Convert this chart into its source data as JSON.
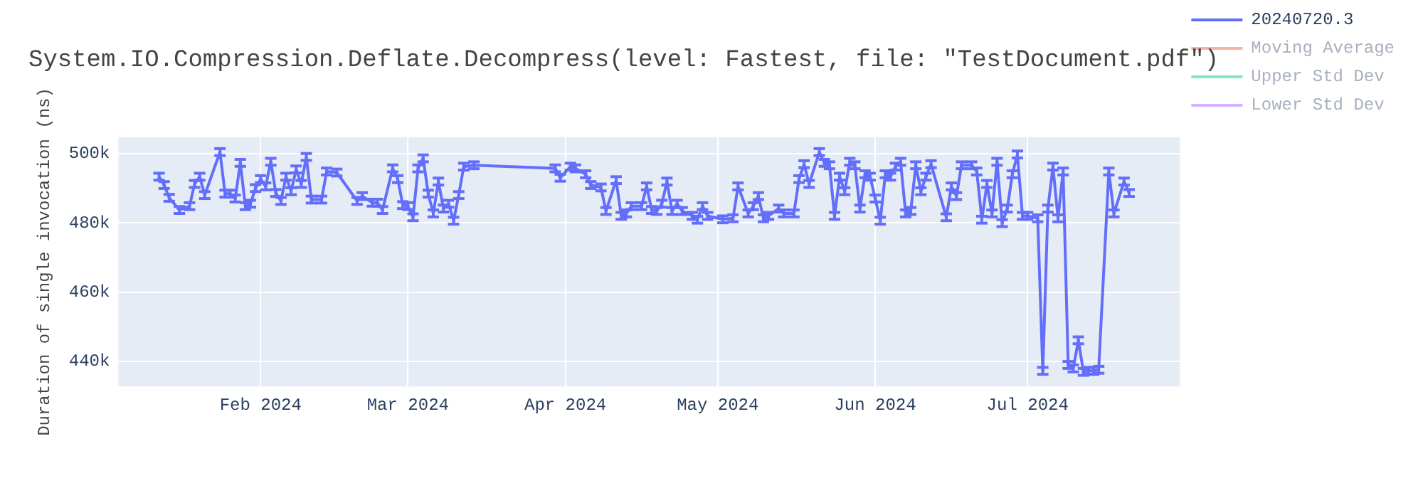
{
  "chart_data": {
    "type": "line",
    "title": "System.IO.Compression.Deflate.Decompress(level: Fastest, file: \"TestDocument.pdf\")",
    "ylabel": "Duration of single invocation (ns)",
    "x": [
      "2024-01-12",
      "2024-01-13",
      "2024-01-14",
      "2024-01-16",
      "2024-01-18",
      "2024-01-19",
      "2024-01-20",
      "2024-01-21",
      "2024-01-24",
      "2024-01-25",
      "2024-01-26",
      "2024-01-27",
      "2024-01-28",
      "2024-01-29",
      "2024-01-30",
      "2024-01-31",
      "2024-02-01",
      "2024-02-02",
      "2024-02-03",
      "2024-02-04",
      "2024-02-05",
      "2024-02-06",
      "2024-02-07",
      "2024-02-08",
      "2024-02-09",
      "2024-02-10",
      "2024-02-11",
      "2024-02-13",
      "2024-02-14",
      "2024-02-16",
      "2024-02-20",
      "2024-02-21",
      "2024-02-23",
      "2024-02-24",
      "2024-02-25",
      "2024-02-27",
      "2024-02-28",
      "2024-02-29",
      "2024-03-01",
      "2024-03-02",
      "2024-03-03",
      "2024-03-04",
      "2024-03-05",
      "2024-03-06",
      "2024-03-07",
      "2024-03-08",
      "2024-03-09",
      "2024-03-10",
      "2024-03-11",
      "2024-03-12",
      "2024-03-14",
      "2024-03-30",
      "2024-03-31",
      "2024-04-02",
      "2024-04-03",
      "2024-04-05",
      "2024-04-06",
      "2024-04-08",
      "2024-04-09",
      "2024-04-11",
      "2024-04-12",
      "2024-04-13",
      "2024-04-14",
      "2024-04-16",
      "2024-04-17",
      "2024-04-18",
      "2024-04-19",
      "2024-04-20",
      "2024-04-21",
      "2024-04-22",
      "2024-04-23",
      "2024-04-24",
      "2024-04-26",
      "2024-04-27",
      "2024-04-28",
      "2024-04-29",
      "2024-05-02",
      "2024-05-04",
      "2024-05-05",
      "2024-05-07",
      "2024-05-08",
      "2024-05-09",
      "2024-05-10",
      "2024-05-11",
      "2024-05-13",
      "2024-05-14",
      "2024-05-16",
      "2024-05-17",
      "2024-05-18",
      "2024-05-19",
      "2024-05-21",
      "2024-05-22",
      "2024-05-23",
      "2024-05-24",
      "2024-05-25",
      "2024-05-26",
      "2024-05-27",
      "2024-05-28",
      "2024-05-29",
      "2024-05-30",
      "2024-05-31",
      "2024-06-01",
      "2024-06-02",
      "2024-06-03",
      "2024-06-04",
      "2024-06-05",
      "2024-06-06",
      "2024-06-07",
      "2024-06-08",
      "2024-06-09",
      "2024-06-10",
      "2024-06-11",
      "2024-06-12",
      "2024-06-15",
      "2024-06-16",
      "2024-06-17",
      "2024-06-18",
      "2024-06-20",
      "2024-06-21",
      "2024-06-22",
      "2024-06-23",
      "2024-06-24",
      "2024-06-25",
      "2024-06-26",
      "2024-06-27",
      "2024-06-28",
      "2024-06-29",
      "2024-06-30",
      "2024-07-01",
      "2024-07-03",
      "2024-07-04",
      "2024-07-05",
      "2024-07-06",
      "2024-07-07",
      "2024-07-08",
      "2024-07-09",
      "2024-07-10",
      "2024-07-11",
      "2024-07-12",
      "2024-07-13",
      "2024-07-14",
      "2024-07-15",
      "2024-07-17",
      "2024-07-18",
      "2024-07-20",
      "2024-07-21"
    ],
    "series": [
      {
        "name": "20240720.3",
        "color": "#636efa",
        "values": [
          493300,
          490900,
          487200,
          483700,
          484800,
          491200,
          493300,
          488000,
          500400,
          488400,
          488400,
          487000,
          497300,
          484800,
          485500,
          490000,
          492600,
          490500,
          497600,
          488600,
          486300,
          493300,
          489100,
          495400,
          491200,
          499000,
          486700,
          486700,
          494800,
          494500,
          486300,
          487700,
          485800,
          485800,
          483700,
          495700,
          492600,
          485100,
          484800,
          481600,
          495700,
          498600,
          488400,
          482700,
          491900,
          484100,
          485500,
          480600,
          488000,
          496200,
          496600,
          495700,
          493000,
          496200,
          495700,
          494000,
          490900,
          490200,
          483400,
          492300,
          482000,
          482700,
          484800,
          484800,
          490500,
          483700,
          483400,
          485500,
          491900,
          483400,
          485500,
          483400,
          482000,
          480900,
          484800,
          482000,
          481000,
          481300,
          490500,
          482700,
          484800,
          487700,
          481300,
          482000,
          484100,
          482700,
          482700,
          492600,
          496900,
          491200,
          500400,
          497300,
          496600,
          482000,
          493300,
          489100,
          497600,
          496600,
          484100,
          494000,
          493300,
          487000,
          480600,
          494000,
          493300,
          496200,
          497600,
          482700,
          483400,
          496600,
          489100,
          493300,
          496900,
          481600,
          490500,
          487700,
          496600,
          496600,
          494800,
          480900,
          491200,
          482700,
          497600,
          479900,
          484100,
          494000,
          499700,
          482000,
          482000,
          481300,
          437300,
          484100,
          496200,
          481300,
          494800,
          439000,
          438000,
          446100,
          437000,
          437300,
          437300,
          437600,
          494800,
          482700,
          491900,
          488600
        ],
        "errors": [
          1000,
          1000,
          1000,
          1000,
          1000,
          1000,
          1000,
          1000,
          1000,
          1000,
          1000,
          1000,
          1000,
          1000,
          1000,
          1000,
          1000,
          1000,
          1000,
          1000,
          1000,
          1000,
          1000,
          1000,
          1000,
          1000,
          1000,
          1000,
          1000,
          1000,
          1000,
          1000,
          1000,
          1000,
          1000,
          1000,
          1000,
          1000,
          1000,
          1000,
          1000,
          1000,
          1000,
          1000,
          1000,
          1000,
          1000,
          1000,
          1000,
          1000,
          1000,
          1000,
          1000,
          1000,
          1000,
          1000,
          1000,
          1000,
          1000,
          1000,
          1000,
          1000,
          1000,
          1000,
          1000,
          1000,
          1000,
          1000,
          1000,
          1000,
          1000,
          1000,
          1000,
          1000,
          1000,
          1000,
          1000,
          1000,
          1000,
          1000,
          1000,
          1000,
          1000,
          1000,
          1000,
          1000,
          1000,
          1000,
          1000,
          1000,
          1000,
          1000,
          1000,
          1000,
          1000,
          1000,
          1000,
          1000,
          1000,
          1000,
          1000,
          1000,
          1000,
          1000,
          1000,
          1000,
          1000,
          1000,
          1000,
          1000,
          1000,
          1000,
          1000,
          1000,
          1000,
          1000,
          1000,
          1000,
          1000,
          1000,
          1000,
          1000,
          1000,
          1000,
          1000,
          1000,
          1000,
          1000,
          1000,
          1000,
          1000,
          1000,
          1000,
          1000,
          1000,
          1000,
          1000,
          1000,
          1000,
          1000,
          1000,
          1000,
          1000,
          1000,
          1000,
          1000
        ]
      },
      {
        "name": "Moving Average",
        "color": "#f7b3a3",
        "values": [
          null,
          null,
          null,
          null,
          null,
          null,
          null,
          null,
          null,
          null,
          null,
          null,
          null,
          null,
          null,
          null,
          null,
          null,
          null,
          null,
          null,
          null,
          null,
          null,
          null,
          null,
          null,
          null,
          null,
          null,
          null,
          null,
          null,
          null,
          null,
          null,
          null,
          null,
          null,
          null,
          null,
          null,
          null,
          null,
          null,
          null,
          null,
          null,
          null,
          null,
          null,
          null,
          null,
          null,
          null,
          null,
          null,
          null,
          null,
          null,
          null,
          null,
          null,
          null,
          null,
          null,
          null,
          null,
          null,
          null,
          null,
          null,
          null,
          null,
          null,
          null,
          null,
          null,
          null,
          null,
          null,
          null,
          null,
          null,
          null,
          null,
          null,
          null,
          null,
          null,
          null,
          null,
          null,
          null,
          null,
          null,
          null,
          null,
          null,
          null,
          null,
          null,
          null,
          null,
          null,
          null,
          null,
          null,
          null,
          null,
          null,
          null,
          null,
          null,
          null,
          null,
          null,
          null,
          null,
          null,
          null,
          null,
          null,
          null,
          null,
          null,
          null,
          null,
          null,
          null,
          null,
          null,
          null,
          null,
          null,
          null,
          null,
          null,
          null,
          null,
          null,
          null,
          null,
          null,
          null,
          null
        ]
      },
      {
        "name": "Upper Std Dev",
        "color": "#80e5c9",
        "values": [
          null,
          null,
          null,
          null,
          null,
          null,
          null,
          null,
          null,
          null,
          null,
          null,
          null,
          null,
          null,
          null,
          null,
          null,
          null,
          null,
          null,
          null,
          null,
          null,
          null,
          null,
          null,
          null,
          null,
          null,
          null,
          null,
          null,
          null,
          null,
          null,
          null,
          null,
          null,
          null,
          null,
          null,
          null,
          null,
          null,
          null,
          null,
          null,
          null,
          null,
          null,
          null,
          null,
          null,
          null,
          null,
          null,
          null,
          null,
          null,
          null,
          null,
          null,
          null,
          null,
          null,
          null,
          null,
          null,
          null,
          null,
          null,
          null,
          null,
          null,
          null,
          null,
          null,
          null,
          null,
          null,
          null,
          null,
          null,
          null,
          null,
          null,
          null,
          null,
          null,
          null,
          null,
          null,
          null,
          null,
          null,
          null,
          null,
          null,
          null,
          null,
          null,
          null,
          null,
          null,
          null,
          null,
          null,
          null,
          null,
          null,
          null,
          null,
          null,
          null,
          null,
          null,
          null,
          null,
          null,
          null,
          null,
          null,
          null,
          null,
          null,
          null,
          null,
          null,
          null,
          null,
          null,
          null,
          null,
          null,
          null,
          null,
          null,
          null,
          null,
          null,
          null,
          null,
          null,
          null,
          null
        ]
      },
      {
        "name": "Lower Std Dev",
        "color": "#d4b1fc",
        "values": [
          null,
          null,
          null,
          null,
          null,
          null,
          null,
          null,
          null,
          null,
          null,
          null,
          null,
          null,
          null,
          null,
          null,
          null,
          null,
          null,
          null,
          null,
          null,
          null,
          null,
          null,
          null,
          null,
          null,
          null,
          null,
          null,
          null,
          null,
          null,
          null,
          null,
          null,
          null,
          null,
          null,
          null,
          null,
          null,
          null,
          null,
          null,
          null,
          null,
          null,
          null,
          null,
          null,
          null,
          null,
          null,
          null,
          null,
          null,
          null,
          null,
          null,
          null,
          null,
          null,
          null,
          null,
          null,
          null,
          null,
          null,
          null,
          null,
          null,
          null,
          null,
          null,
          null,
          null,
          null,
          null,
          null,
          null,
          null,
          null,
          null,
          null,
          null,
          null,
          null,
          null,
          null,
          null,
          null,
          null,
          null,
          null,
          null,
          null,
          null,
          null,
          null,
          null,
          null,
          null,
          null,
          null,
          null,
          null,
          null,
          null,
          null,
          null,
          null,
          null,
          null,
          null,
          null,
          null,
          null,
          null,
          null,
          null,
          null,
          null,
          null,
          null,
          null,
          null,
          null,
          null,
          null,
          null,
          null,
          null,
          null,
          null,
          null,
          null,
          null,
          null,
          null,
          null,
          null,
          null,
          null
        ]
      }
    ],
    "xlim": [
      "2024-01-04",
      "2024-07-31"
    ],
    "xticks": [
      {
        "value": "2024-02-01",
        "label": "Feb 2024"
      },
      {
        "value": "2024-03-01",
        "label": "Mar 2024"
      },
      {
        "value": "2024-04-01",
        "label": "Apr 2024"
      },
      {
        "value": "2024-05-01",
        "label": "May 2024"
      },
      {
        "value": "2024-06-01",
        "label": "Jun 2024"
      },
      {
        "value": "2024-07-01",
        "label": "Jul 2024"
      }
    ],
    "ylim": [
      432800,
      504700
    ],
    "yticks": [
      {
        "value": 440000,
        "label": "440k"
      },
      {
        "value": 460000,
        "label": "460k"
      },
      {
        "value": 480000,
        "label": "480k"
      },
      {
        "value": 500000,
        "label": "500k"
      }
    ],
    "grid": true,
    "legend": "top right",
    "line_style": "solid"
  }
}
